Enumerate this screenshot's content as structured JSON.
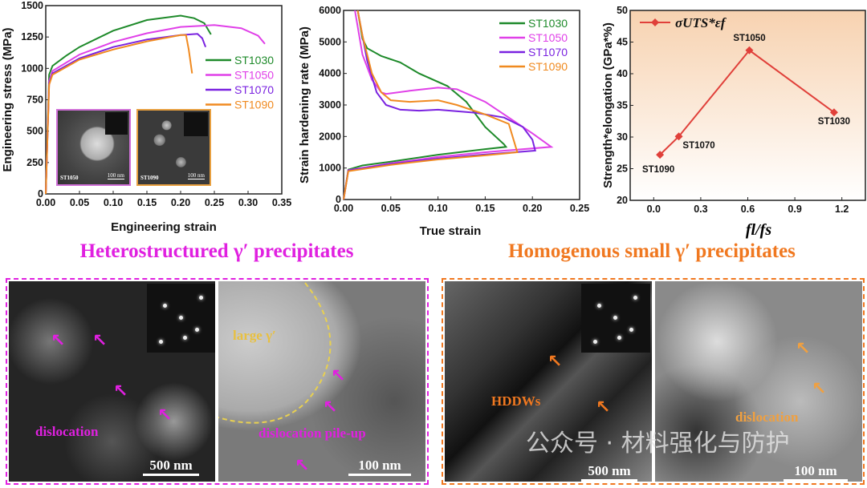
{
  "chart_data": [
    {
      "type": "line",
      "xlabel": "Engineering strain",
      "ylabel": "Engineering stress (MPa)",
      "xlim": [
        0,
        0.35
      ],
      "ylim": [
        0,
        1500
      ],
      "xticks": [
        "0.00",
        "0.05",
        "0.10",
        "0.15",
        "0.20",
        "0.25",
        "0.30",
        "0.35"
      ],
      "yticks": [
        "0",
        "250",
        "500",
        "750",
        "1000",
        "1250",
        "1500"
      ],
      "legend": "right",
      "series": [
        {
          "name": "ST1030",
          "color": "#1e8a2a",
          "points": [
            [
              0,
              0
            ],
            [
              0.005,
              950
            ],
            [
              0.01,
              1020
            ],
            [
              0.03,
              1100
            ],
            [
              0.05,
              1170
            ],
            [
              0.1,
              1300
            ],
            [
              0.15,
              1385
            ],
            [
              0.2,
              1420
            ],
            [
              0.22,
              1400
            ],
            [
              0.235,
              1360
            ],
            [
              0.245,
              1270
            ]
          ]
        },
        {
          "name": "ST1050",
          "color": "#e040e8",
          "points": [
            [
              0,
              0
            ],
            [
              0.005,
              900
            ],
            [
              0.01,
              980
            ],
            [
              0.05,
              1110
            ],
            [
              0.1,
              1210
            ],
            [
              0.15,
              1280
            ],
            [
              0.2,
              1330
            ],
            [
              0.25,
              1345
            ],
            [
              0.29,
              1320
            ],
            [
              0.315,
              1260
            ],
            [
              0.325,
              1195
            ]
          ]
        },
        {
          "name": "ST1070",
          "color": "#7a22e0",
          "points": [
            [
              0,
              0
            ],
            [
              0.005,
              880
            ],
            [
              0.01,
              960
            ],
            [
              0.05,
              1080
            ],
            [
              0.1,
              1170
            ],
            [
              0.15,
              1230
            ],
            [
              0.2,
              1265
            ],
            [
              0.225,
              1275
            ],
            [
              0.232,
              1240
            ],
            [
              0.237,
              1170
            ]
          ]
        },
        {
          "name": "ST1090",
          "color": "#f08a20",
          "points": [
            [
              0,
              0
            ],
            [
              0.005,
              870
            ],
            [
              0.01,
              950
            ],
            [
              0.05,
              1070
            ],
            [
              0.1,
              1150
            ],
            [
              0.15,
              1215
            ],
            [
              0.2,
              1265
            ],
            [
              0.208,
              1265
            ],
            [
              0.212,
              1150
            ],
            [
              0.217,
              960
            ]
          ]
        }
      ],
      "insets": [
        {
          "label": "ST1050",
          "scale": "100 nm",
          "border": "#d070d8"
        },
        {
          "label": "ST1090",
          "scale": "100 nm",
          "border": "#e8a040"
        }
      ]
    },
    {
      "type": "line",
      "xlabel": "True strain",
      "ylabel": "Strain hardening rate (MPa)",
      "xlim": [
        0,
        0.25
      ],
      "ylim": [
        0,
        6000
      ],
      "xticks": [
        "0.00",
        "0.05",
        "0.10",
        "0.15",
        "0.20",
        "0.25"
      ],
      "yticks": [
        "0",
        "1000",
        "2000",
        "3000",
        "4000",
        "5000",
        "6000"
      ],
      "legend": "top-right",
      "series": [
        {
          "name": "ST1030",
          "color": "#1e8a2a",
          "points": [
            [
              0,
              0
            ],
            [
              0.005,
              950
            ],
            [
              0.02,
              1080
            ],
            [
              0.05,
              1200
            ],
            [
              0.1,
              1420
            ],
            [
              0.15,
              1600
            ],
            [
              0.172,
              1670
            ],
            [
              0.17,
              1750
            ],
            [
              0.15,
              2300
            ],
            [
              0.13,
              3100
            ],
            [
              0.11,
              3600
            ],
            [
              0.08,
              4000
            ],
            [
              0.06,
              4350
            ],
            [
              0.04,
              4550
            ],
            [
              0.025,
              4800
            ],
            [
              0.02,
              5100
            ],
            [
              0.015,
              6000
            ]
          ]
        },
        {
          "name": "ST1050",
          "color": "#e040e8",
          "points": [
            [
              0,
              0
            ],
            [
              0.005,
              930
            ],
            [
              0.05,
              1150
            ],
            [
              0.1,
              1350
            ],
            [
              0.15,
              1500
            ],
            [
              0.22,
              1670
            ],
            [
              0.2,
              2100
            ],
            [
              0.18,
              2500
            ],
            [
              0.15,
              3100
            ],
            [
              0.12,
              3500
            ],
            [
              0.1,
              3550
            ],
            [
              0.07,
              3450
            ],
            [
              0.045,
              3350
            ],
            [
              0.04,
              3400
            ],
            [
              0.03,
              3800
            ],
            [
              0.02,
              4600
            ],
            [
              0.012,
              6000
            ]
          ]
        },
        {
          "name": "ST1070",
          "color": "#7a22e0",
          "points": [
            [
              0,
              0
            ],
            [
              0.005,
              920
            ],
            [
              0.05,
              1130
            ],
            [
              0.1,
              1300
            ],
            [
              0.15,
              1430
            ],
            [
              0.203,
              1550
            ],
            [
              0.2,
              1900
            ],
            [
              0.19,
              2300
            ],
            [
              0.17,
              2600
            ],
            [
              0.14,
              2750
            ],
            [
              0.1,
              2850
            ],
            [
              0.08,
              2820
            ],
            [
              0.06,
              2850
            ],
            [
              0.045,
              3000
            ],
            [
              0.035,
              3400
            ],
            [
              0.025,
              4400
            ],
            [
              0.015,
              6000
            ]
          ]
        },
        {
          "name": "ST1090",
          "color": "#f08a20",
          "points": [
            [
              0,
              0
            ],
            [
              0.005,
              900
            ],
            [
              0.05,
              1100
            ],
            [
              0.1,
              1270
            ],
            [
              0.15,
              1400
            ],
            [
              0.184,
              1500
            ],
            [
              0.18,
              1900
            ],
            [
              0.175,
              2400
            ],
            [
              0.15,
              2700
            ],
            [
              0.12,
              3000
            ],
            [
              0.1,
              3150
            ],
            [
              0.07,
              3100
            ],
            [
              0.05,
              3150
            ],
            [
              0.04,
              3400
            ],
            [
              0.03,
              4000
            ],
            [
              0.02,
              5200
            ],
            [
              0.015,
              6000
            ]
          ]
        }
      ]
    },
    {
      "type": "line",
      "xlabel": "fl/fs",
      "ylabel": "Strength*elongation (GPa*%)",
      "xlim": [
        -0.15,
        1.35
      ],
      "ylim": [
        20,
        50
      ],
      "xticks": [
        "0.0",
        "0.3",
        "0.6",
        "0.9",
        "1.2"
      ],
      "yticks": [
        "20",
        "25",
        "30",
        "35",
        "40",
        "45",
        "50"
      ],
      "legend": "top-left",
      "background": "orange-to-white gradient",
      "series": [
        {
          "name": "σUTS*εf",
          "color": "#e0403a",
          "marker": "diamond",
          "points": [
            [
              0.04,
              27.2
            ],
            [
              0.16,
              30.1
            ],
            [
              0.61,
              43.7
            ],
            [
              1.15,
              33.9
            ]
          ],
          "labels": [
            "ST1090",
            "ST1070",
            "ST1050",
            "ST1030"
          ]
        }
      ]
    }
  ],
  "micrographs": {
    "left_title": "Heterostructured γ′ precipitates",
    "left_color": "#e020e0",
    "right_title": "Homogenous small γ′ precipitates",
    "right_color": "#f07820",
    "panels": [
      {
        "label": "dislocation",
        "scale": "500 nm"
      },
      {
        "label": "dislocation pile-up",
        "extra_label": "large γ′",
        "scale": "100 nm"
      },
      {
        "label": "HDDWs",
        "scale": "500 nm"
      },
      {
        "label": "dislocation",
        "scale": "100 nm"
      }
    ]
  },
  "watermark": "公众号 · 材料强化与防护"
}
